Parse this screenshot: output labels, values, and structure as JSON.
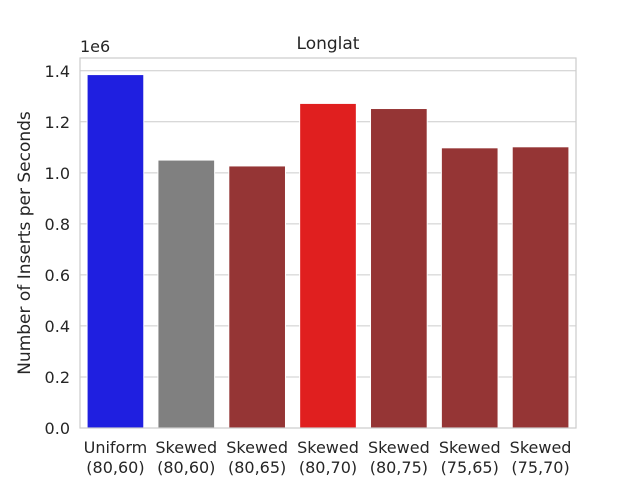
{
  "chart_data": {
    "type": "bar",
    "title": "Longlat",
    "xlabel": "",
    "ylabel": "Number of Inserts per Seconds",
    "offset_label": "1e6",
    "ylim": [
      0,
      1.45
    ],
    "yticks": [
      0.0,
      0.2,
      0.4,
      0.6,
      0.8,
      1.0,
      1.2,
      1.4
    ],
    "ytick_labels": [
      "0.0",
      "0.2",
      "0.4",
      "0.6",
      "0.8",
      "1.0",
      "1.2",
      "1.4"
    ],
    "grid": true,
    "categories": [
      [
        "Uniform",
        "(80,60)"
      ],
      [
        "Skewed",
        "(80,60)"
      ],
      [
        "Skewed",
        "(80,65)"
      ],
      [
        "Skewed",
        "(80,70)"
      ],
      [
        "Skewed",
        "(80,75)"
      ],
      [
        "Skewed",
        "(75,65)"
      ],
      [
        "Skewed",
        "(75,70)"
      ]
    ],
    "values": [
      1.385,
      1.05,
      1.027,
      1.272,
      1.252,
      1.098,
      1.102
    ],
    "colors": [
      "#1f1fe0",
      "#808080",
      "#953535",
      "#e01f1f",
      "#953535",
      "#953535",
      "#953535"
    ]
  }
}
